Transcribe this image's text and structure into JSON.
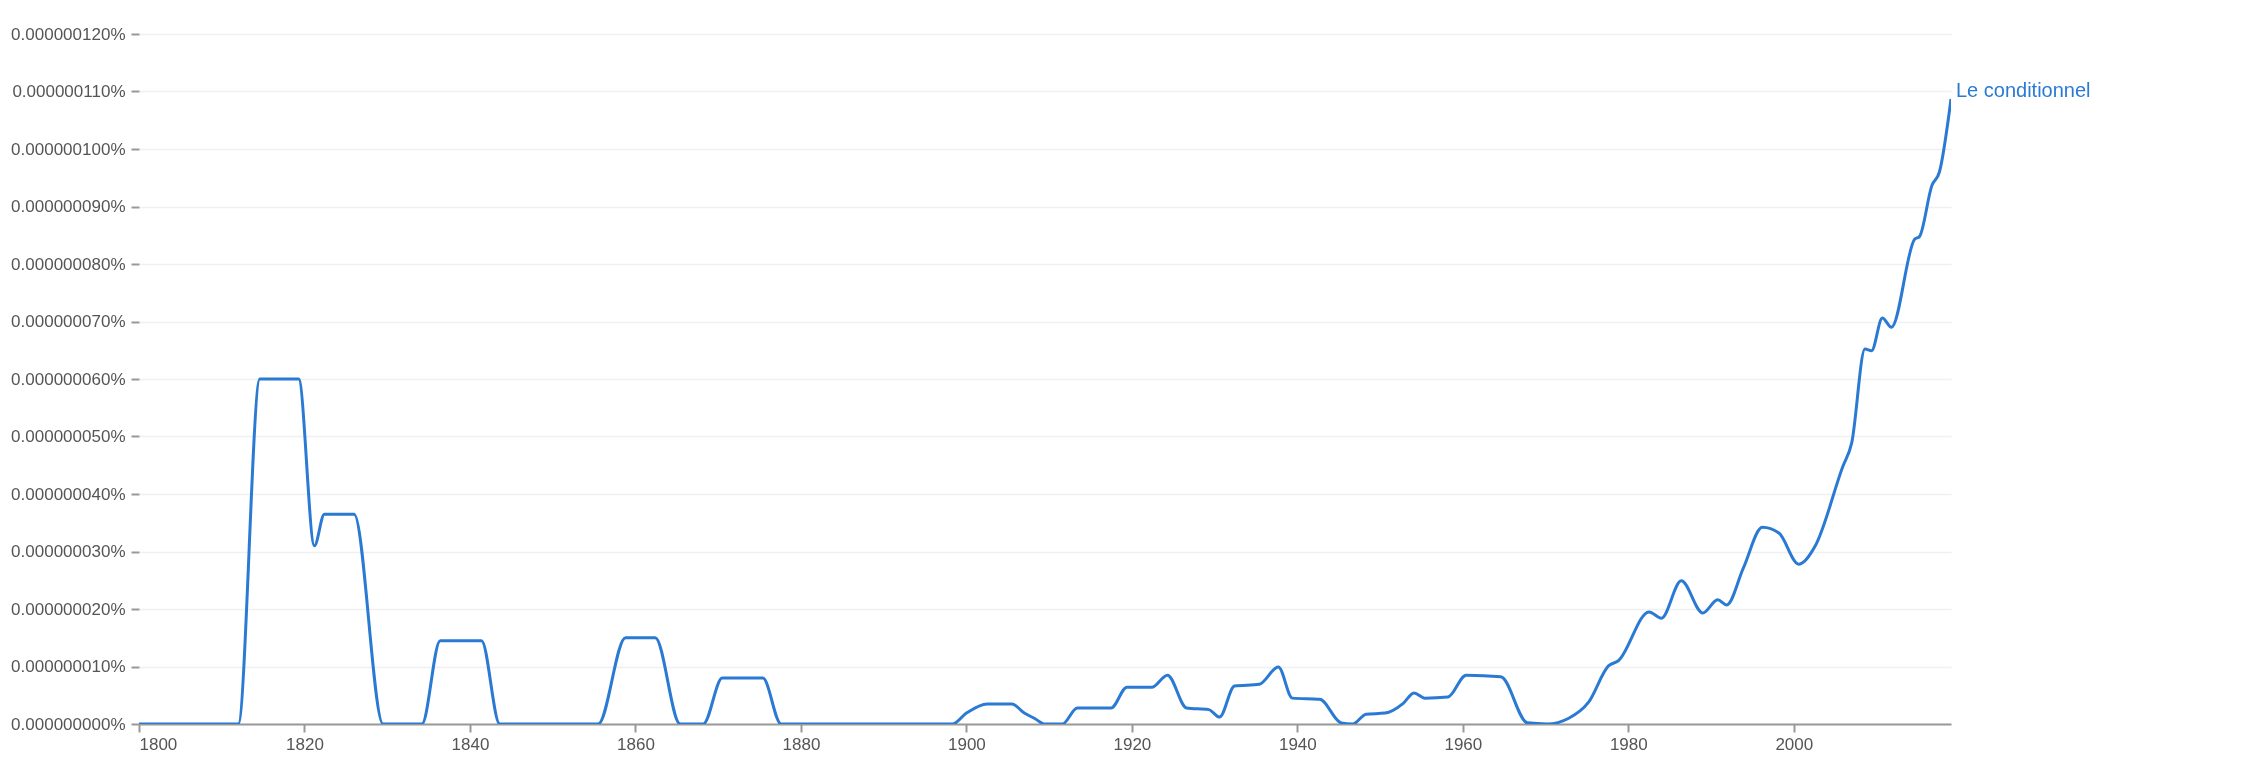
{
  "chart_data": {
    "type": "line",
    "grid": "y",
    "line_style": "solid",
    "x": [
      1800,
      1812,
      1814.6,
      1819.3,
      1821.2,
      1822.4,
      1826,
      1829.5,
      1834.2,
      1836.4,
      1841.4,
      1843.6,
      1855.5,
      1858.8,
      1862.4,
      1865.4,
      1868.2,
      1870.5,
      1875.4,
      1877.6,
      1898.3,
      1900,
      1902.5,
      1905.5,
      1907,
      1908.2,
      1909.5,
      1911.6,
      1913.4,
      1917.5,
      1919.4,
      1922.4,
      1924.3,
      1926.6,
      1929.3,
      1930.6,
      1932.4,
      1935.4,
      1937.7,
      1939.4,
      1942.7,
      1945.3,
      1946.7,
      1948.3,
      1950.6,
      1952.8,
      1954.1,
      1955.4,
      1958.2,
      1960.4,
      1964.6,
      1967.8,
      1970.2,
      1972.8,
      1975.2,
      1977.6,
      1978.8,
      1982.5,
      1984,
      1986.4,
      1989,
      1990.8,
      1991.9,
      1993.9,
      1996.2,
      1998.2,
      2000.6,
      2002.6,
      2005.9,
      2007,
      2008.6,
      2009.4,
      2010.7,
      2011.8,
      2014.6,
      2015.2,
      2016.7,
      2017.6,
      2019
    ],
    "series": [
      {
        "name": "Le conditionnel",
        "color": "#2a7ad4",
        "values": [
          0,
          0,
          6e-08,
          6e-08,
          3.1e-08,
          3.65e-08,
          3.65e-08,
          0,
          0,
          1.45e-08,
          1.45e-08,
          0,
          0,
          1.5e-08,
          1.5e-08,
          0,
          0,
          8e-09,
          8e-09,
          0,
          0,
          1.9e-09,
          3.5e-09,
          3.5e-09,
          1.9e-09,
          1e-09,
          0,
          0,
          2.8e-09,
          2.8e-09,
          6.4e-09,
          6.4e-09,
          8.5e-09,
          2.8e-09,
          2.5e-09,
          1.2e-09,
          6.6e-09,
          6.9e-09,
          9.9e-09,
          4.5e-09,
          4.3e-09,
          2e-10,
          0,
          1.7e-09,
          1.9e-09,
          3.6e-09,
          5.4e-09,
          4.5e-09,
          4.7e-09,
          8.5e-09,
          8.2e-09,
          2e-10,
          0,
          1e-09,
          3.8e-09,
          1.01e-08,
          1.1e-08,
          1.95e-08,
          1.84e-08,
          2.49e-08,
          1.93e-08,
          2.16e-08,
          2.07e-08,
          2.71e-08,
          3.42e-08,
          3.32e-08,
          2.78e-08,
          3.1e-08,
          4.47e-08,
          4.89e-08,
          6.52e-08,
          6.49e-08,
          7.06e-08,
          6.9e-08,
          8.43e-08,
          8.48e-08,
          9.37e-08,
          9.6e-08,
          1.087e-07
        ]
      }
    ],
    "xlim": [
      1800,
      2019
    ],
    "xticks": [
      1800,
      1820,
      1840,
      1860,
      1880,
      1900,
      1920,
      1940,
      1960,
      1980,
      2000
    ],
    "ylim": [
      0,
      1.2e-07
    ],
    "yticks": [
      {
        "value": 0,
        "label": "0.000000000%"
      },
      {
        "value": 1e-08,
        "label": "0.000000010%"
      },
      {
        "value": 2e-08,
        "label": "0.000000020%"
      },
      {
        "value": 3e-08,
        "label": "0.000000030%"
      },
      {
        "value": 4e-08,
        "label": "0.000000040%"
      },
      {
        "value": 5e-08,
        "label": "0.000000050%"
      },
      {
        "value": 6e-08,
        "label": "0.000000060%"
      },
      {
        "value": 7e-08,
        "label": "0.000000070%"
      },
      {
        "value": 8e-08,
        "label": "0.000000080%"
      },
      {
        "value": 9e-08,
        "label": "0.000000090%"
      },
      {
        "value": 1e-07,
        "label": "0.000000100%"
      },
      {
        "value": 1.1e-07,
        "label": "0.000000110%"
      },
      {
        "value": 1.2e-07,
        "label": "0.000000120%"
      }
    ]
  }
}
